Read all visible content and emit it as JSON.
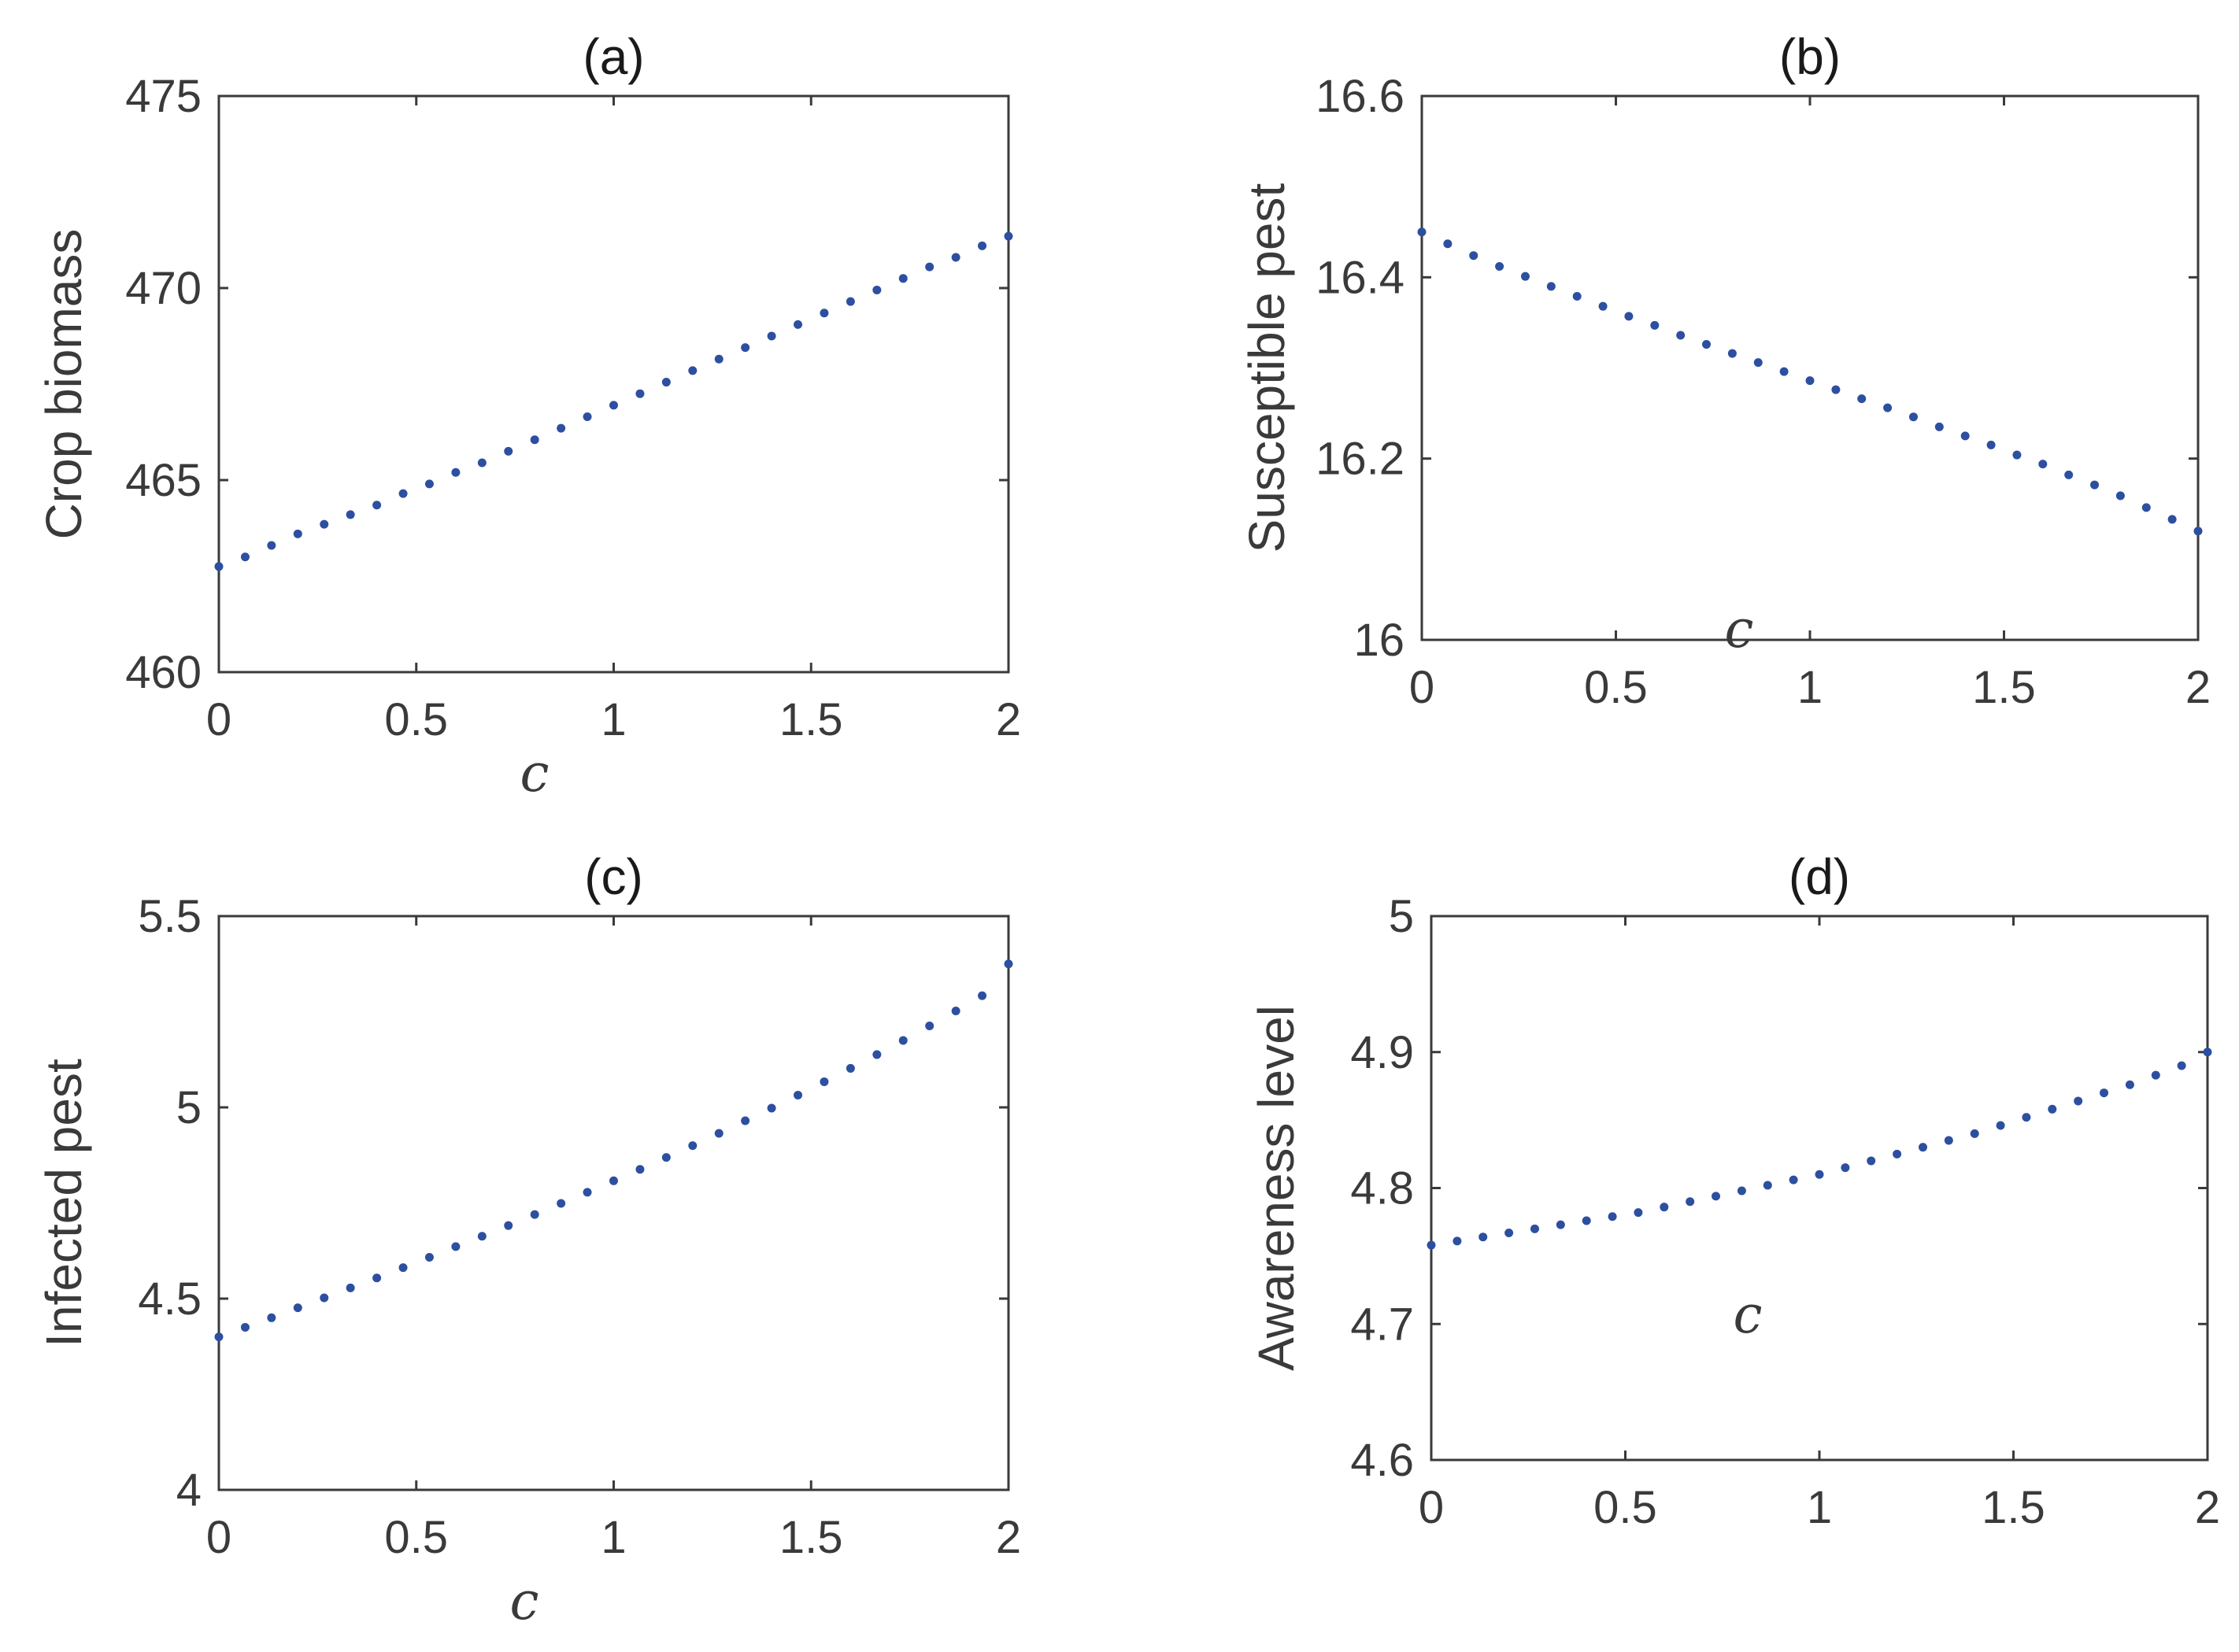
{
  "chart_data": [
    {
      "type": "scatter",
      "title": "(a)",
      "xlabel": "c",
      "ylabel": "Crop biomass",
      "xlim": [
        0,
        2
      ],
      "ylim": [
        460,
        475
      ],
      "xticks": [
        0,
        0.5,
        1,
        1.5,
        2
      ],
      "xtick_labels": [
        "0",
        "0.5",
        "1",
        "1.5",
        "2"
      ],
      "yticks": [
        460,
        465,
        470,
        475
      ],
      "ytick_labels": [
        "460",
        "465",
        "470",
        "475"
      ],
      "x": [
        0,
        0.0667,
        0.1333,
        0.2,
        0.2667,
        0.3333,
        0.4,
        0.4667,
        0.5333,
        0.6,
        0.6667,
        0.7333,
        0.8,
        0.8667,
        0.9333,
        1,
        1.0667,
        1.1333,
        1.2,
        1.2667,
        1.3333,
        1.4,
        1.4667,
        1.5333,
        1.6,
        1.6667,
        1.7333,
        1.8,
        1.8667,
        1.9333,
        2
      ],
      "y": [
        462.75,
        463.0,
        463.3,
        463.6,
        463.85,
        464.1,
        464.35,
        464.65,
        464.9,
        465.2,
        465.45,
        465.75,
        466.05,
        466.35,
        466.65,
        466.95,
        467.25,
        467.55,
        467.85,
        468.15,
        468.45,
        468.75,
        469.05,
        469.35,
        469.65,
        469.95,
        470.25,
        470.55,
        470.8,
        471.1,
        471.35
      ],
      "grid": false
    },
    {
      "type": "scatter",
      "title": "(b)",
      "xlabel": "c",
      "ylabel": "Susceptible pest",
      "xlim": [
        0,
        2
      ],
      "ylim": [
        16,
        16.6
      ],
      "xticks": [
        0,
        0.5,
        1,
        1.5,
        2
      ],
      "xtick_labels": [
        "0",
        "0.5",
        "1",
        "1.5",
        "2"
      ],
      "yticks": [
        16,
        16.2,
        16.4,
        16.6
      ],
      "ytick_labels": [
        "16",
        "16.2",
        "16.4",
        "16.6"
      ],
      "x": [
        0,
        0.0667,
        0.1333,
        0.2,
        0.2667,
        0.3333,
        0.4,
        0.4667,
        0.5333,
        0.6,
        0.6667,
        0.7333,
        0.8,
        0.8667,
        0.9333,
        1,
        1.0667,
        1.1333,
        1.2,
        1.2667,
        1.3333,
        1.4,
        1.4667,
        1.5333,
        1.6,
        1.6667,
        1.7333,
        1.8,
        1.8667,
        1.9333,
        2
      ],
      "y": [
        16.45,
        16.437,
        16.424,
        16.412,
        16.401,
        16.39,
        16.379,
        16.368,
        16.357,
        16.347,
        16.336,
        16.326,
        16.316,
        16.306,
        16.296,
        16.286,
        16.276,
        16.266,
        16.256,
        16.246,
        16.235,
        16.225,
        16.215,
        16.204,
        16.194,
        16.182,
        16.171,
        16.159,
        16.146,
        16.133,
        16.12
      ],
      "grid": false
    },
    {
      "type": "scatter",
      "title": "(c)",
      "xlabel": "c",
      "ylabel": "Infected pest",
      "xlim": [
        0,
        2
      ],
      "ylim": [
        4,
        5.5
      ],
      "xticks": [
        0,
        0.5,
        1,
        1.5,
        2
      ],
      "xtick_labels": [
        "0",
        "0.5",
        "1",
        "1.5",
        "2"
      ],
      "yticks": [
        4,
        4.5,
        5,
        5.5
      ],
      "ytick_labels": [
        "4",
        "4.5",
        "5",
        "5.5"
      ],
      "x": [
        0,
        0.0667,
        0.1333,
        0.2,
        0.2667,
        0.3333,
        0.4,
        0.4667,
        0.5333,
        0.6,
        0.6667,
        0.7333,
        0.8,
        0.8667,
        0.9333,
        1,
        1.0667,
        1.1333,
        1.2,
        1.2667,
        1.3333,
        1.4,
        1.4667,
        1.5333,
        1.6,
        1.6667,
        1.7333,
        1.8,
        1.8667,
        1.9333,
        2
      ],
      "y": [
        4.4,
        4.425,
        4.45,
        4.476,
        4.502,
        4.528,
        4.554,
        4.581,
        4.608,
        4.636,
        4.663,
        4.691,
        4.72,
        4.749,
        4.778,
        4.808,
        4.838,
        4.869,
        4.9,
        4.932,
        4.965,
        4.998,
        5.032,
        5.067,
        5.102,
        5.138,
        5.175,
        5.213,
        5.252,
        5.292,
        5.375
      ],
      "grid": false
    },
    {
      "type": "scatter",
      "title": "(d)",
      "xlabel": "c",
      "ylabel": "Awareness level",
      "xlim": [
        0,
        2
      ],
      "ylim": [
        4.6,
        5
      ],
      "xticks": [
        0,
        0.5,
        1,
        1.5,
        2
      ],
      "xtick_labels": [
        "0",
        "0.5",
        "1",
        "1.5",
        "2"
      ],
      "yticks": [
        4.6,
        4.7,
        4.8,
        4.9,
        5
      ],
      "ytick_labels": [
        "4.6",
        "4.7",
        "4.8",
        "4.9",
        "5"
      ],
      "x": [
        0,
        0.0667,
        0.1333,
        0.2,
        0.2667,
        0.3333,
        0.4,
        0.4667,
        0.5333,
        0.6,
        0.6667,
        0.7333,
        0.8,
        0.8667,
        0.9333,
        1,
        1.0667,
        1.1333,
        1.2,
        1.2667,
        1.3333,
        1.4,
        1.4667,
        1.5333,
        1.6,
        1.6667,
        1.7333,
        1.8,
        1.8667,
        1.9333,
        2
      ],
      "y": [
        4.758,
        4.761,
        4.764,
        4.767,
        4.77,
        4.773,
        4.776,
        4.779,
        4.782,
        4.786,
        4.79,
        4.794,
        4.798,
        4.802,
        4.806,
        4.81,
        4.815,
        4.82,
        4.825,
        4.83,
        4.835,
        4.84,
        4.846,
        4.852,
        4.858,
        4.864,
        4.87,
        4.876,
        4.883,
        4.89,
        4.9
      ],
      "grid": false
    }
  ]
}
